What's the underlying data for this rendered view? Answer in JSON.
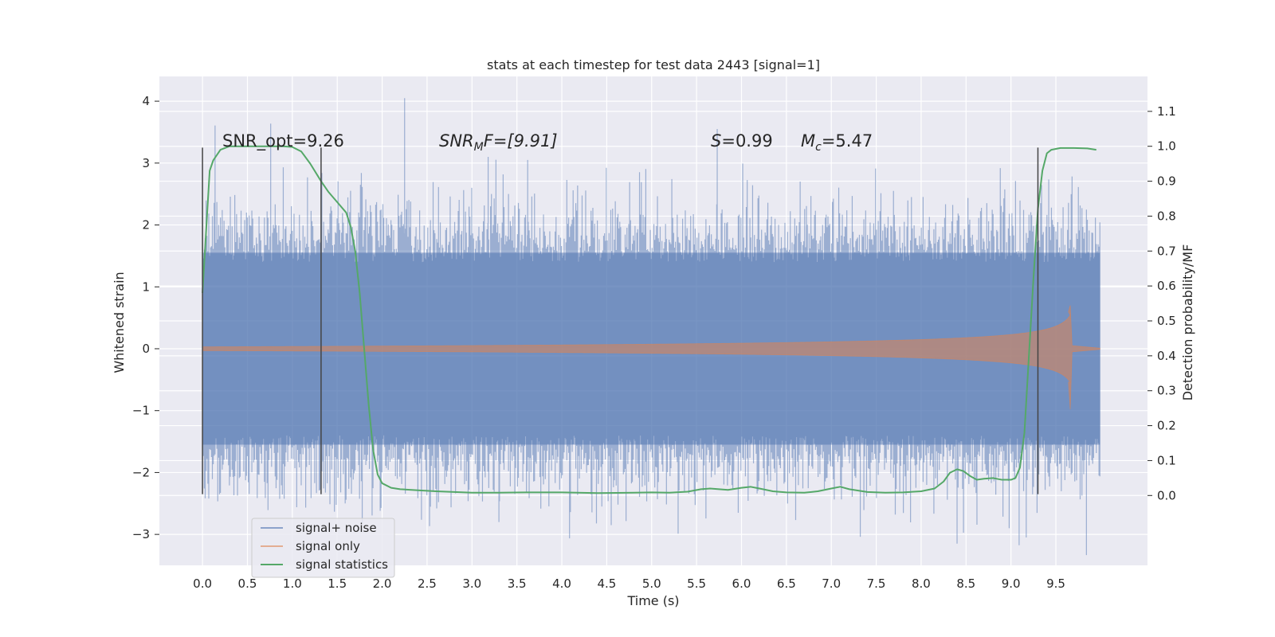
{
  "chart_data": {
    "type": "line",
    "title": "stats at each timestep for test data 2443 [signal=1]",
    "xlabel": "Time (s)",
    "ylabel": "Whitened strain",
    "ylabel_right": "Detection probability/MF",
    "xlim": [
      -0.48,
      10.52
    ],
    "ylim": [
      -3.5,
      4.4
    ],
    "ylim_right": [
      -0.2,
      1.2
    ],
    "x_ticks": [
      "0.0",
      "0.5",
      "1.0",
      "1.5",
      "2.0",
      "2.5",
      "3.0",
      "3.5",
      "4.0",
      "4.5",
      "5.0",
      "5.5",
      "6.0",
      "6.5",
      "7.0",
      "7.5",
      "8.0",
      "8.5",
      "9.0",
      "9.5"
    ],
    "y_ticks_left": [
      "−3",
      "−2",
      "−1",
      "0",
      "1",
      "2",
      "3",
      "4"
    ],
    "y_ticks_right": [
      "0.0",
      "0.1",
      "0.2",
      "0.3",
      "0.4",
      "0.5",
      "0.6",
      "0.7",
      "0.8",
      "0.9",
      "1.0",
      "1.1"
    ],
    "grid": true,
    "legend_position": "lower-left",
    "colors": {
      "background": "#eaeaf2",
      "signal_noise": "#4c72b0",
      "signal_only": "#dd8452",
      "statistics": "#55a868",
      "marker_lines": "#444444"
    },
    "annotations": {
      "snr_opt": "SNR_opt=9.26",
      "snr_mf_prefix": "SNR",
      "snr_mf_sub": "M",
      "snr_mf_suffix": "F=[9.91]",
      "s_prefix": "S",
      "s_value": "=0.99",
      "mc_prefix": "M",
      "mc_sub": "c",
      "mc_value": "=5.47"
    },
    "vertical_markers_x": [
      0.0,
      1.32,
      9.3
    ],
    "series": [
      {
        "name": "signal+ noise",
        "axis": "left",
        "kind": "noise",
        "x_range": [
          0.0,
          9.99
        ],
        "envelope_core": 1.55,
        "peaks": [
          {
            "x": 2.25,
            "y": 4.05
          },
          {
            "x": 5.73,
            "y": 3.55
          },
          {
            "x": 3.18,
            "y": 3.1
          },
          {
            "x": 3.62,
            "y": 3.05
          },
          {
            "x": 8.4,
            "y": -3.15
          },
          {
            "x": 9.17,
            "y": -3.05
          },
          {
            "x": 3.3,
            "y": -2.8
          },
          {
            "x": 4.55,
            "y": -2.85
          },
          {
            "x": 8.98,
            "y": -2.9
          }
        ]
      },
      {
        "name": "signal only",
        "axis": "left",
        "kind": "chirp",
        "x_range": [
          0.0,
          9.99
        ],
        "merger_x": 9.66,
        "peak_amplitude": 0.7,
        "trough_amplitude": -0.98
      },
      {
        "name": "signal statistics",
        "axis": "right",
        "kind": "line",
        "x": [
          0.0,
          0.05,
          0.08,
          0.12,
          0.2,
          0.3,
          0.5,
          0.7,
          0.9,
          1.0,
          1.1,
          1.2,
          1.32,
          1.4,
          1.5,
          1.6,
          1.65,
          1.7,
          1.75,
          1.8,
          1.85,
          1.9,
          1.95,
          2.0,
          2.1,
          2.2,
          2.4,
          2.6,
          2.8,
          3.0,
          3.3,
          3.6,
          4.0,
          4.4,
          4.8,
          5.0,
          5.2,
          5.4,
          5.55,
          5.65,
          5.75,
          5.85,
          6.0,
          6.1,
          6.2,
          6.35,
          6.5,
          6.7,
          6.85,
          7.0,
          7.1,
          7.2,
          7.4,
          7.6,
          7.8,
          8.0,
          8.15,
          8.25,
          8.32,
          8.4,
          8.47,
          8.55,
          8.62,
          8.7,
          8.8,
          8.9,
          9.0,
          9.05,
          9.1,
          9.15,
          9.2,
          9.25,
          9.3,
          9.35,
          9.4,
          9.45,
          9.55,
          9.7,
          9.85,
          9.95
        ],
        "y": [
          0.58,
          0.8,
          0.93,
          0.96,
          0.99,
          1.0,
          1.0,
          1.0,
          1.0,
          0.998,
          0.985,
          0.95,
          0.9,
          0.87,
          0.84,
          0.81,
          0.77,
          0.7,
          0.58,
          0.42,
          0.26,
          0.13,
          0.06,
          0.035,
          0.022,
          0.018,
          0.015,
          0.012,
          0.01,
          0.008,
          0.008,
          0.009,
          0.009,
          0.007,
          0.008,
          0.009,
          0.008,
          0.011,
          0.018,
          0.02,
          0.018,
          0.016,
          0.022,
          0.025,
          0.02,
          0.012,
          0.009,
          0.008,
          0.012,
          0.02,
          0.025,
          0.018,
          0.01,
          0.008,
          0.009,
          0.012,
          0.02,
          0.04,
          0.065,
          0.075,
          0.07,
          0.055,
          0.045,
          0.048,
          0.05,
          0.045,
          0.045,
          0.05,
          0.08,
          0.18,
          0.4,
          0.62,
          0.82,
          0.93,
          0.98,
          0.99,
          0.995,
          0.995,
          0.994,
          0.99
        ]
      }
    ]
  }
}
